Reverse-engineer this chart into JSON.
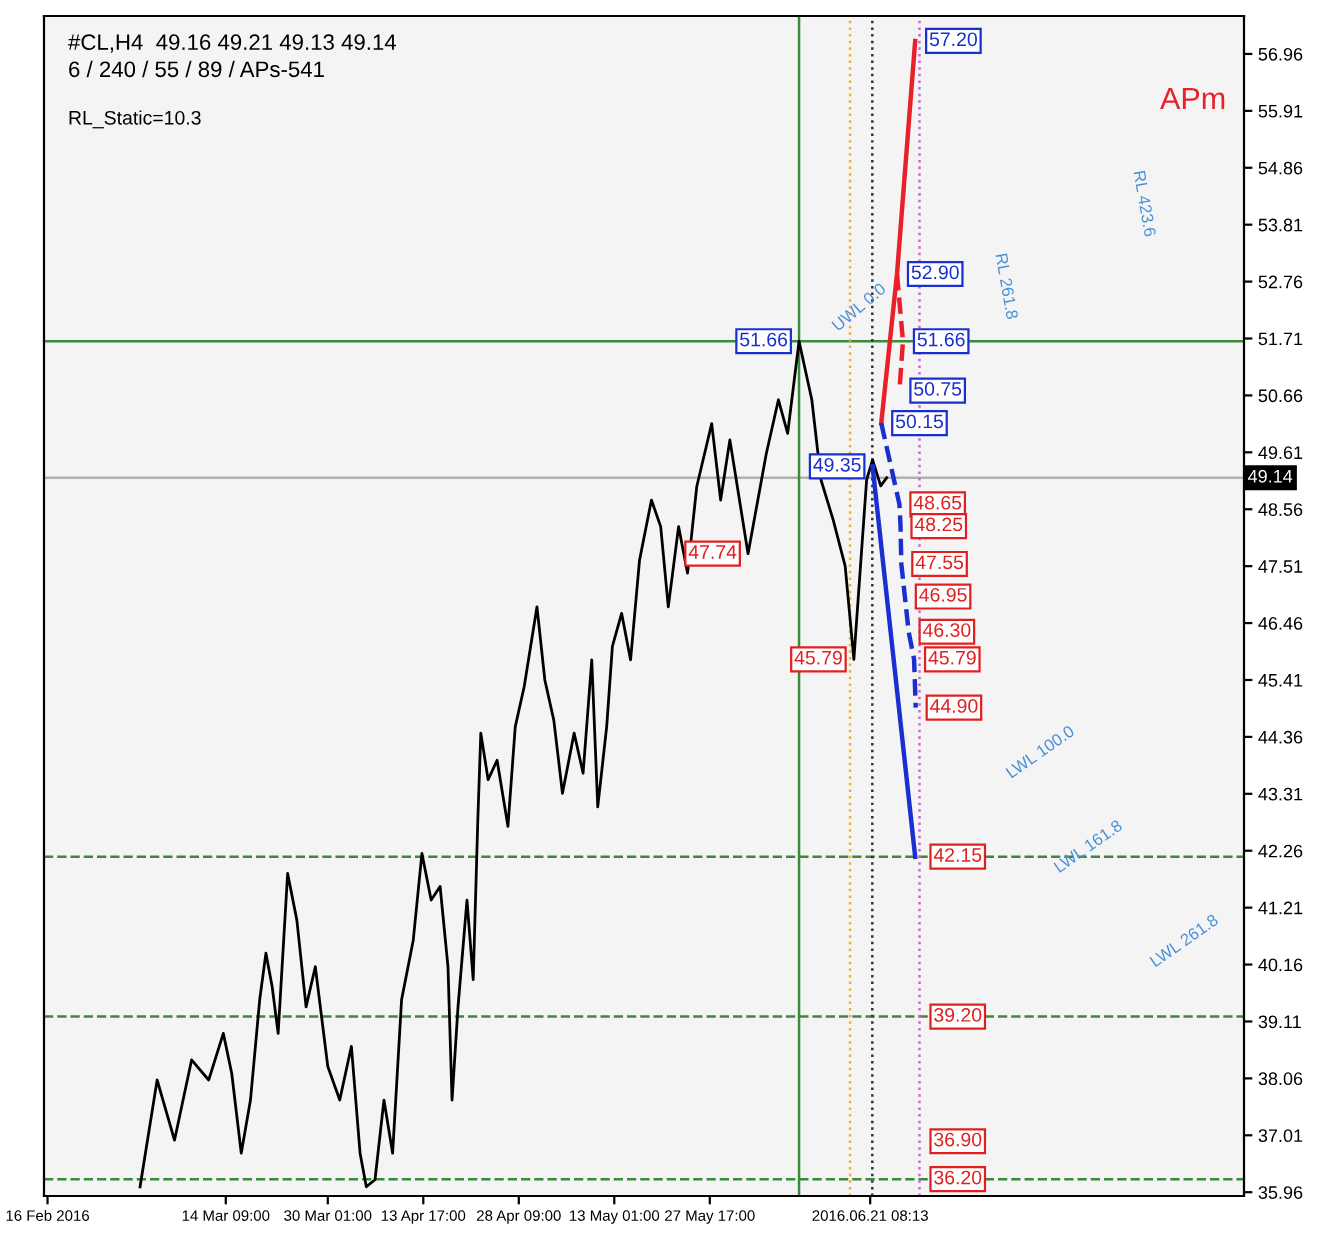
{
  "chart_data": {
    "type": "line",
    "xlim": [
      "2016-02-15T11:00",
      "2016-08-17T18:00"
    ],
    "ylim": [
      35.89,
      57.66
    ],
    "xticks": [
      {
        "value": "2016-02-16",
        "label": "16 Feb 2016"
      },
      {
        "value": "2016-03-14T09:00",
        "label": "14 Mar 09:00"
      },
      {
        "value": "2016-03-30T01:00",
        "label": "30 Mar 01:00"
      },
      {
        "value": "2016-04-13T17:00",
        "label": "13 Apr 17:00"
      },
      {
        "value": "2016-04-28T09:00",
        "label": "28 Apr 09:00"
      },
      {
        "value": "2016-05-13T01:00",
        "label": "13 May 01:00"
      },
      {
        "value": "2016-05-27T17:00",
        "label": "27 May 17:00"
      },
      {
        "value": "2016-06-21T08:13",
        "label": "2016.06.21 08:13"
      }
    ],
    "yticks": [
      35.96,
      37.01,
      38.06,
      39.11,
      40.16,
      41.21,
      42.26,
      43.31,
      44.36,
      45.41,
      46.46,
      47.51,
      48.56,
      49.61,
      50.66,
      51.71,
      52.76,
      53.81,
      54.86,
      55.91,
      56.96
    ],
    "grid": false,
    "marker": "none",
    "series": [
      {
        "color": "#000000",
        "line_style": "solid",
        "x": [
          "2016-03-01T05:00",
          "2016-03-03T20:00",
          "2016-03-06T12:00",
          "2016-03-09T03:00",
          "2016-03-11T18:00",
          "2016-03-14T00:00",
          "2016-03-15T07:00",
          "2016-03-16T18:00",
          "2016-03-18T04:00",
          "2016-03-19T14:00",
          "2016-03-20T13:00",
          "2016-03-21T12:00",
          "2016-03-22T10:00",
          "2016-03-23T21:00",
          "2016-03-25T07:00",
          "2016-03-26T17:00",
          "2016-03-28T03:00",
          "2016-03-30T01:00",
          "2016-03-31T21:00",
          "2016-04-02T16:00",
          "2016-04-04T00:00",
          "2016-04-04T23:00",
          "2016-04-06T07:00",
          "2016-04-07T16:00",
          "2016-04-09T00:00",
          "2016-04-10T09:00",
          "2016-04-12T04:00",
          "2016-04-13T12:00",
          "2016-04-14T22:00",
          "2016-04-16T07:00",
          "2016-04-17T12:00",
          "2016-04-18T03:00",
          "2016-04-19T01:00",
          "2016-04-20T10:00",
          "2016-04-21T09:00",
          "2016-04-22T02:00",
          "2016-04-22T13:00",
          "2016-04-23T16:00",
          "2016-04-25T01:00",
          "2016-04-26T17:00",
          "2016-04-27T20:00",
          "2016-04-29T05:00",
          "2016-05-01T04:00",
          "2016-05-02T09:00",
          "2016-05-03T18:00",
          "2016-05-05T02:00",
          "2016-05-06T21:00",
          "2016-05-08T06:00",
          "2016-05-09T14:00",
          "2016-05-10T12:00",
          "2016-05-11T21:00",
          "2016-05-12T18:00",
          "2016-05-14T04:00",
          "2016-05-15T13:00",
          "2016-05-16T22:00",
          "2016-05-18T18:00",
          "2016-05-20T04:00",
          "2016-05-21T08:00",
          "2016-05-22T22:00",
          "2016-05-24T07:00",
          "2016-05-25T17:00",
          "2016-05-28T00:00",
          "2016-05-29T09:00",
          "2016-05-30T19:00",
          "2016-06-02T14:00",
          "2016-06-05T09:00",
          "2016-06-07T06:00",
          "2016-06-08T16:00",
          "2016-06-10T10:00",
          "2016-06-12T09:00",
          "2016-06-13T19:00",
          "2016-06-15T16:00",
          "2016-06-17T12:00",
          "2016-06-18T20:00",
          "2016-06-20T19:00",
          "2016-06-21T17:00",
          "2016-06-22T23:00",
          "2016-06-23T21:00"
        ],
        "values": [
          36.06,
          38.03,
          36.92,
          38.4,
          38.03,
          38.89,
          38.15,
          36.68,
          37.66,
          39.51,
          40.37,
          39.75,
          38.89,
          41.84,
          40.98,
          39.38,
          40.12,
          38.28,
          37.66,
          38.65,
          36.68,
          36.06,
          36.19,
          37.66,
          36.68,
          39.51,
          40.61,
          42.21,
          41.35,
          41.6,
          40.12,
          37.66,
          39.38,
          41.35,
          39.88,
          42.83,
          44.43,
          43.57,
          43.93,
          42.71,
          44.55,
          45.29,
          46.76,
          45.41,
          44.67,
          43.32,
          44.43,
          43.69,
          45.78,
          43.07,
          44.55,
          46.03,
          46.64,
          45.78,
          47.62,
          48.73,
          48.24,
          46.76,
          48.24,
          47.38,
          48.98,
          50.14,
          48.73,
          49.84,
          47.74,
          49.58,
          50.58,
          49.96,
          51.66,
          50.58,
          49.1,
          48.36,
          47.51,
          45.79,
          49.1,
          49.47,
          48.99,
          49.14
        ]
      },
      {
        "color": "#e8202a",
        "line_style": "solid",
        "x": [
          "2016-06-23T01:00",
          "2016-06-25T11:00",
          "2016-06-28T06:00"
        ],
        "values": [
          50.15,
          52.9,
          57.2
        ]
      },
      {
        "color": "#e8202a",
        "line_style": "dashed",
        "x": [
          "2016-06-25T11:00",
          "2016-06-26T09:00",
          "2016-06-25T20:00"
        ],
        "values": [
          52.9,
          51.66,
          50.75
        ]
      },
      {
        "color": "#1a2fd0",
        "line_style": "solid",
        "x": [
          "2016-06-21T17:00",
          "2016-06-28T06:00"
        ],
        "values": [
          49.35,
          42.15
        ]
      },
      {
        "color": "#1a2fd0",
        "line_style": "dashed",
        "x": [
          "2016-06-23T01:00",
          "2016-06-25T20:00",
          "2016-06-26T00:00",
          "2016-06-26T03:00",
          "2016-06-26T16:00",
          "2016-06-27T06:00",
          "2016-06-28T02:00",
          "2016-06-28T08:00"
        ],
        "values": [
          50.15,
          48.65,
          48.25,
          47.55,
          46.95,
          46.3,
          45.79,
          44.9
        ]
      }
    ],
    "ref_lines": [
      {
        "axis": "y",
        "value": 49.14,
        "label": "49.14",
        "color": "#b0b0b0",
        "line_style": "solid"
      },
      {
        "axis": "y",
        "value": 51.66,
        "color": "#3a8a3a",
        "line_style": "solid"
      },
      {
        "axis": "y",
        "value": 42.15,
        "color": "#3a8a3a",
        "line_style": "dashed"
      },
      {
        "axis": "y",
        "value": 39.2,
        "color": "#3a8a3a",
        "line_style": "dashed"
      },
      {
        "axis": "y",
        "value": 36.2,
        "color": "#3a8a3a",
        "line_style": "dashed"
      },
      {
        "axis": "x",
        "value": "2016-06-10T10:00",
        "color": "#3a8a3a",
        "line_style": "solid"
      },
      {
        "axis": "x",
        "value": "2016-06-18T06:00",
        "color": "#f0b030",
        "line_style": "dotted"
      },
      {
        "axis": "x",
        "value": "2016-06-21T16:00",
        "color": "#333333",
        "line_style": "dotted"
      },
      {
        "axis": "x",
        "value": "2016-06-28T22:00",
        "color": "#cc66cc",
        "line_style": "dotted"
      }
    ],
    "annotations": [
      "#CL,H4  49.16 49.21 49.13 49.14",
      "6 / 240 / 55 / 89 / APs-541",
      "RL_Static=10.3",
      "APm",
      "UWL 0.0",
      "RL 261.8",
      "RL 423.6",
      "LWL 100.0",
      "LWL 161.8",
      "LWL 261.8",
      {
        "text": "57.20",
        "x": "2016-06-28T06:00",
        "y": 57.2
      },
      {
        "text": "52.90",
        "x": "2016-06-25T11:00",
        "y": 52.9
      },
      {
        "text": "51.66",
        "x": "2016-06-26T09:00",
        "y": 51.66
      },
      {
        "text": "50.75",
        "x": "2016-06-25T20:00",
        "y": 50.75
      },
      {
        "text": "50.15",
        "x": "2016-06-23T01:00",
        "y": 50.15
      },
      {
        "text": "49.35",
        "x": "2016-06-21T17:00",
        "y": 49.35
      },
      {
        "text": "48.65",
        "x": "2016-06-25T20:00",
        "y": 48.65
      },
      {
        "text": "48.25",
        "x": "2016-06-26T00:00",
        "y": 48.25
      },
      {
        "text": "47.55",
        "x": "2016-06-26T03:00",
        "y": 47.55
      },
      {
        "text": "46.95",
        "x": "2016-06-26T16:00",
        "y": 46.95
      },
      {
        "text": "46.30",
        "x": "2016-06-27T06:00",
        "y": 46.3
      },
      {
        "text": "45.79",
        "x": "2016-06-28T02:00",
        "y": 45.79
      },
      {
        "text": "44.90",
        "x": "2016-06-28T08:00",
        "y": 44.9
      },
      {
        "text": "42.15",
        "x": "2016-06-28T22:00",
        "y": 42.15
      },
      {
        "text": "39.20",
        "x": "2016-06-28T22:00",
        "y": 39.2
      },
      {
        "text": "36.90",
        "x": "2016-06-28T22:00",
        "y": 36.9
      },
      {
        "text": "36.20",
        "x": "2016-06-28T22:00",
        "y": 36.2
      },
      {
        "text": "51.66",
        "x": "2016-06-10T10:00",
        "y": 51.66
      },
      {
        "text": "47.74",
        "x": "2016-06-02T14:00",
        "y": 47.74
      },
      {
        "text": "45.79",
        "x": "2016-06-18T20:00",
        "y": 45.79
      }
    ]
  }
}
